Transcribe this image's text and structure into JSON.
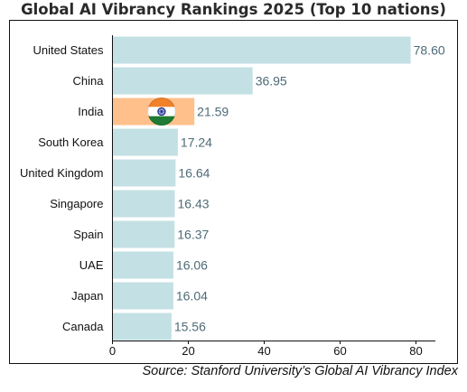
{
  "chart_data": {
    "type": "bar",
    "orientation": "horizontal",
    "title": "Global AI Vibrancy Rankings 2025 (Top 10 nations)",
    "categories": [
      "United States",
      "China",
      "India",
      "South Korea",
      "United Kingdom",
      "Singapore",
      "Spain",
      "UAE",
      "Japan",
      "Canada"
    ],
    "values": [
      78.6,
      36.95,
      21.59,
      17.24,
      16.64,
      16.43,
      16.37,
      16.06,
      16.04,
      15.56
    ],
    "value_labels": [
      "78.60",
      "36.95",
      "21.59",
      "17.24",
      "16.64",
      "16.43",
      "16.37",
      "16.06",
      "16.04",
      "15.56"
    ],
    "xlim": [
      0,
      85
    ],
    "xticks": [
      0,
      20,
      40,
      60,
      80
    ],
    "xlabel": "",
    "ylabel": "",
    "grid": false,
    "highlight": {
      "category": "India",
      "marker": "india-flag-icon"
    },
    "colors": {
      "bar": "#c3e0e4",
      "highlight_bar": "#ffc08c",
      "value_text": "#4f6b78",
      "axis": "#111111",
      "flag_saffron": "#f2812b",
      "flag_green": "#1f7a33",
      "flag_chakra": "#1a2a8a"
    }
  },
  "source": "Source: Stanford University’s Global AI Vibrancy Index"
}
